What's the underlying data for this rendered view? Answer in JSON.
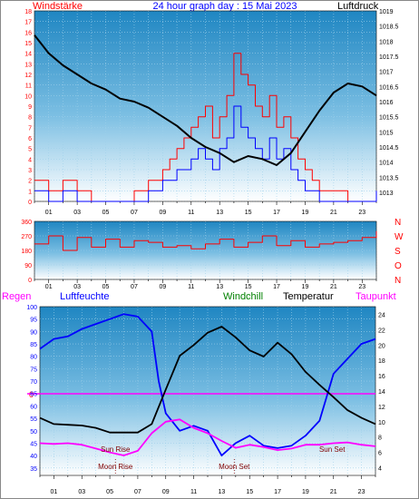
{
  "header": {
    "left_label": "Windstärke",
    "title": "24 hour graph day : 15 Mai 2023",
    "right_label": "Luftdruck"
  },
  "x_ticks": [
    "01",
    "03",
    "05",
    "07",
    "09",
    "11",
    "13",
    "15",
    "17",
    "19",
    "21",
    "23"
  ],
  "colors": {
    "red": "#ff0000",
    "blue": "#0000ff",
    "black": "#000000",
    "magenta": "#ff00ff",
    "green": "#008000",
    "axis_text": "#0000ff",
    "sky_top": "#1f86c2",
    "sky_bottom": "#ffffff"
  },
  "chart_data": [
    {
      "type": "line",
      "name": "wind-pressure",
      "xlim": [
        0,
        24
      ],
      "y_left": {
        "ticks": [
          "0",
          "1",
          "2",
          "3",
          "4",
          "5",
          "6",
          "7",
          "8",
          "9",
          "10",
          "11",
          "12",
          "13",
          "14",
          "15",
          "16",
          "17",
          "18"
        ],
        "range": [
          0,
          18
        ]
      },
      "y_right": {
        "ticks": [
          "1013",
          "1013.5",
          "1014",
          "1014.5",
          "1015",
          "1015.5",
          "1016",
          "1016.5",
          "1017",
          "1017.5",
          "1018",
          "1018.5",
          "1019"
        ],
        "range": [
          1012.7,
          1019
        ]
      },
      "series": [
        {
          "axis": "right",
          "color": "#000000",
          "x": [
            0,
            0.5,
            1,
            2,
            3,
            4,
            5,
            6,
            7,
            8,
            9,
            10,
            11,
            12,
            13,
            14,
            15,
            16,
            17,
            18,
            19,
            20,
            21,
            22,
            23,
            24
          ],
          "y": [
            1018.2,
            1017.9,
            1017.6,
            1017.2,
            1016.9,
            1016.6,
            1016.4,
            1016.1,
            1016.0,
            1015.8,
            1015.5,
            1015.2,
            1014.8,
            1014.5,
            1014.3,
            1014.0,
            1014.2,
            1014.1,
            1013.9,
            1014.3,
            1015.0,
            1015.7,
            1016.3,
            1016.6,
            1016.5,
            1016.2
          ]
        },
        {
          "axis": "left",
          "color": "#ff0000",
          "x": [
            0,
            1,
            2,
            3,
            4,
            5,
            6,
            7,
            8,
            8.5,
            9,
            9.5,
            10,
            10.5,
            11,
            11.5,
            12,
            12.5,
            13,
            13.5,
            14,
            14.5,
            15,
            15.5,
            16,
            16.5,
            17,
            17.5,
            18,
            18.5,
            19,
            19.5,
            20,
            21,
            22,
            23,
            24
          ],
          "y": [
            2,
            1,
            2,
            1,
            0,
            0,
            0,
            1,
            2,
            2,
            3,
            4,
            5,
            6,
            7,
            8,
            9,
            6,
            8,
            10,
            14,
            12,
            11,
            9,
            8,
            10,
            7,
            8,
            6,
            4,
            3,
            2,
            1,
            1,
            0,
            0,
            1
          ]
        },
        {
          "axis": "left",
          "color": "#0000ff",
          "x": [
            0,
            1,
            2,
            3,
            4,
            5,
            6,
            7,
            8,
            8.5,
            9,
            9.5,
            10,
            10.5,
            11,
            11.5,
            12,
            12.5,
            13,
            13.5,
            14,
            14.5,
            15,
            15.5,
            16,
            16.5,
            17,
            17.5,
            18,
            18.5,
            19,
            19.5,
            20,
            21,
            22,
            23,
            24
          ],
          "y": [
            1,
            0,
            1,
            0,
            0,
            0,
            0,
            0,
            1,
            1,
            2,
            2,
            3,
            3,
            4,
            5,
            4,
            3,
            5,
            6,
            9,
            7,
            6,
            5,
            4,
            6,
            4,
            5,
            3,
            2,
            1,
            1,
            0,
            0,
            0,
            0,
            1
          ]
        }
      ]
    },
    {
      "type": "line",
      "name": "wind-direction",
      "xlim": [
        0,
        24
      ],
      "y_left": {
        "ticks": [
          "0",
          "90",
          "180",
          "270",
          "360"
        ],
        "range": [
          0,
          360
        ]
      },
      "y_right_labels": [
        "N",
        "W",
        "S",
        "O",
        "N"
      ],
      "series": [
        {
          "color": "#ff0000",
          "x": [
            0,
            1,
            2,
            3,
            4,
            5,
            6,
            7,
            8,
            9,
            10,
            11,
            12,
            13,
            14,
            15,
            16,
            17,
            18,
            19,
            20,
            21,
            22,
            23,
            24
          ],
          "y": [
            220,
            270,
            180,
            260,
            200,
            250,
            200,
            240,
            230,
            200,
            210,
            190,
            220,
            250,
            200,
            230,
            270,
            210,
            240,
            200,
            220,
            230,
            240,
            260,
            300
          ]
        }
      ]
    },
    {
      "type": "line",
      "name": "humidity-temperature",
      "xlim": [
        0,
        24
      ],
      "legend": {
        "left": [
          "Regen",
          "Luftfeuchte"
        ],
        "right": [
          "Windchill",
          "Temperatur",
          "Taupunkt"
        ]
      },
      "y_left": {
        "ticks": [
          "35",
          "40",
          "45",
          "50",
          "55",
          "60",
          "65",
          "70",
          "75",
          "80",
          "85",
          "90",
          "95",
          "100"
        ],
        "range": [
          32,
          100
        ]
      },
      "y_right": {
        "ticks": [
          "4",
          "6",
          "8",
          "10",
          "12",
          "14",
          "16",
          "18",
          "20",
          "22",
          "24"
        ],
        "range": [
          3,
          25
        ]
      },
      "rain_label": "0",
      "annotations": [
        {
          "text": "Sun Rise",
          "x": 5.4
        },
        {
          "text": "Moon Rise",
          "x": 5.4
        },
        {
          "text": "Moon Set",
          "x": 13.9
        },
        {
          "text": "Sun Set",
          "x": 20.9
        }
      ],
      "series": [
        {
          "name": "Luftfeuchte",
          "color": "#0000ff",
          "axis": "left",
          "x": [
            0,
            1,
            2,
            3,
            4,
            5,
            6,
            7,
            8,
            8.5,
            9,
            10,
            11,
            12,
            13,
            14,
            15,
            16,
            17,
            18,
            19,
            20,
            21,
            22,
            23,
            24
          ],
          "y": [
            83,
            87,
            88,
            91,
            93,
            95,
            97,
            96,
            90,
            70,
            57,
            50,
            52,
            50,
            40,
            45,
            48,
            44,
            43,
            44,
            48,
            54,
            73,
            79,
            85,
            87
          ]
        },
        {
          "name": "Temperatur",
          "color": "#000000",
          "axis": "right",
          "x": [
            0,
            1,
            2,
            3,
            4,
            5,
            6,
            7,
            8,
            9,
            10,
            11,
            12,
            13,
            14,
            15,
            16,
            17,
            18,
            19,
            20,
            21,
            22,
            23,
            24
          ],
          "y": [
            10.5,
            9.7,
            9.6,
            9.5,
            9.2,
            8.6,
            8.6,
            8.6,
            9.7,
            14.2,
            18.6,
            20.0,
            21.6,
            22.4,
            21.0,
            19.3,
            18.5,
            20.3,
            18.8,
            16.5,
            14.8,
            13.2,
            11.5,
            10.5,
            9.7
          ]
        },
        {
          "name": "Taupunkt",
          "color": "#ff00ff",
          "axis": "right",
          "x": [
            0,
            1,
            2,
            3,
            4,
            5,
            6,
            7,
            8,
            9,
            10,
            11,
            12,
            13,
            14,
            15,
            16,
            17,
            18,
            19,
            20,
            21,
            22,
            23,
            24
          ],
          "y": [
            7.2,
            7.1,
            7.2,
            7.0,
            6.5,
            6.0,
            5.6,
            6.2,
            8.5,
            10.0,
            10.3,
            9.2,
            8.5,
            7.5,
            6.6,
            7.0,
            6.7,
            6.3,
            6.5,
            7.0,
            7.0,
            7.2,
            7.3,
            7.0,
            6.8
          ]
        }
      ]
    }
  ]
}
